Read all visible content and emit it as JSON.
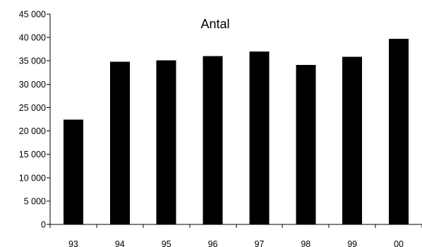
{
  "chart_data": {
    "type": "bar",
    "title": "Antal",
    "categories": [
      "93",
      "94",
      "95",
      "96",
      "97",
      "98",
      "99",
      "00"
    ],
    "values": [
      22400,
      34800,
      35100,
      36000,
      37000,
      34100,
      35900,
      39700
    ],
    "ylim": [
      0,
      45000
    ],
    "yticks": [
      0,
      5000,
      10000,
      15000,
      20000,
      25000,
      30000,
      35000,
      40000,
      45000
    ],
    "ytick_labels": [
      "0",
      "5 000",
      "10 000",
      "15 000",
      "20 000",
      "25 000",
      "30 000",
      "35 000",
      "40 000",
      "45 000"
    ],
    "xlabel": "",
    "ylabel": "",
    "grid": false,
    "legend": "none",
    "bar_color": "#000000"
  }
}
